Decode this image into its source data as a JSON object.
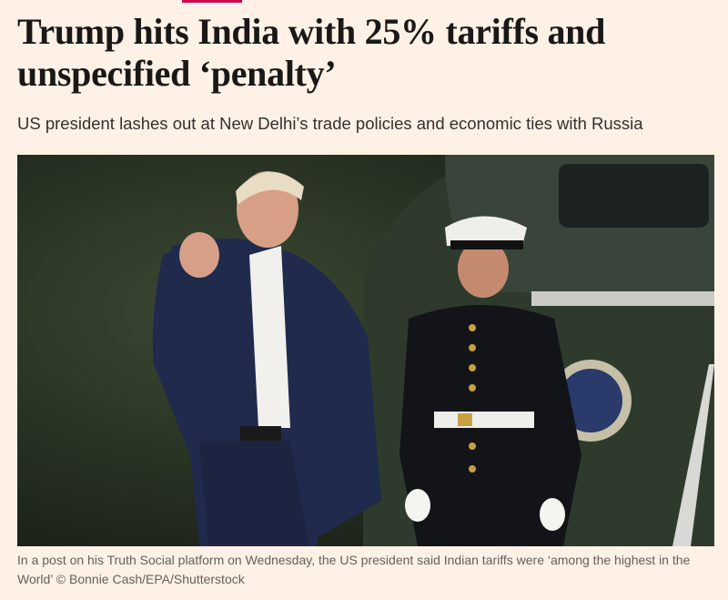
{
  "article": {
    "headline_lines": [
      "Trump hits India with 25% tariffs and",
      "unspecified ‘penalty’"
    ],
    "standfirst": "US president lashes out at New Delhi’s trade policies and economic ties with Russia",
    "caption": "In a post on his Truth Social platform on Wednesday, the US president said Indian tariffs were ‘among the highest in the World’ © Bonnie Cash/EPA/Shutterstock"
  }
}
